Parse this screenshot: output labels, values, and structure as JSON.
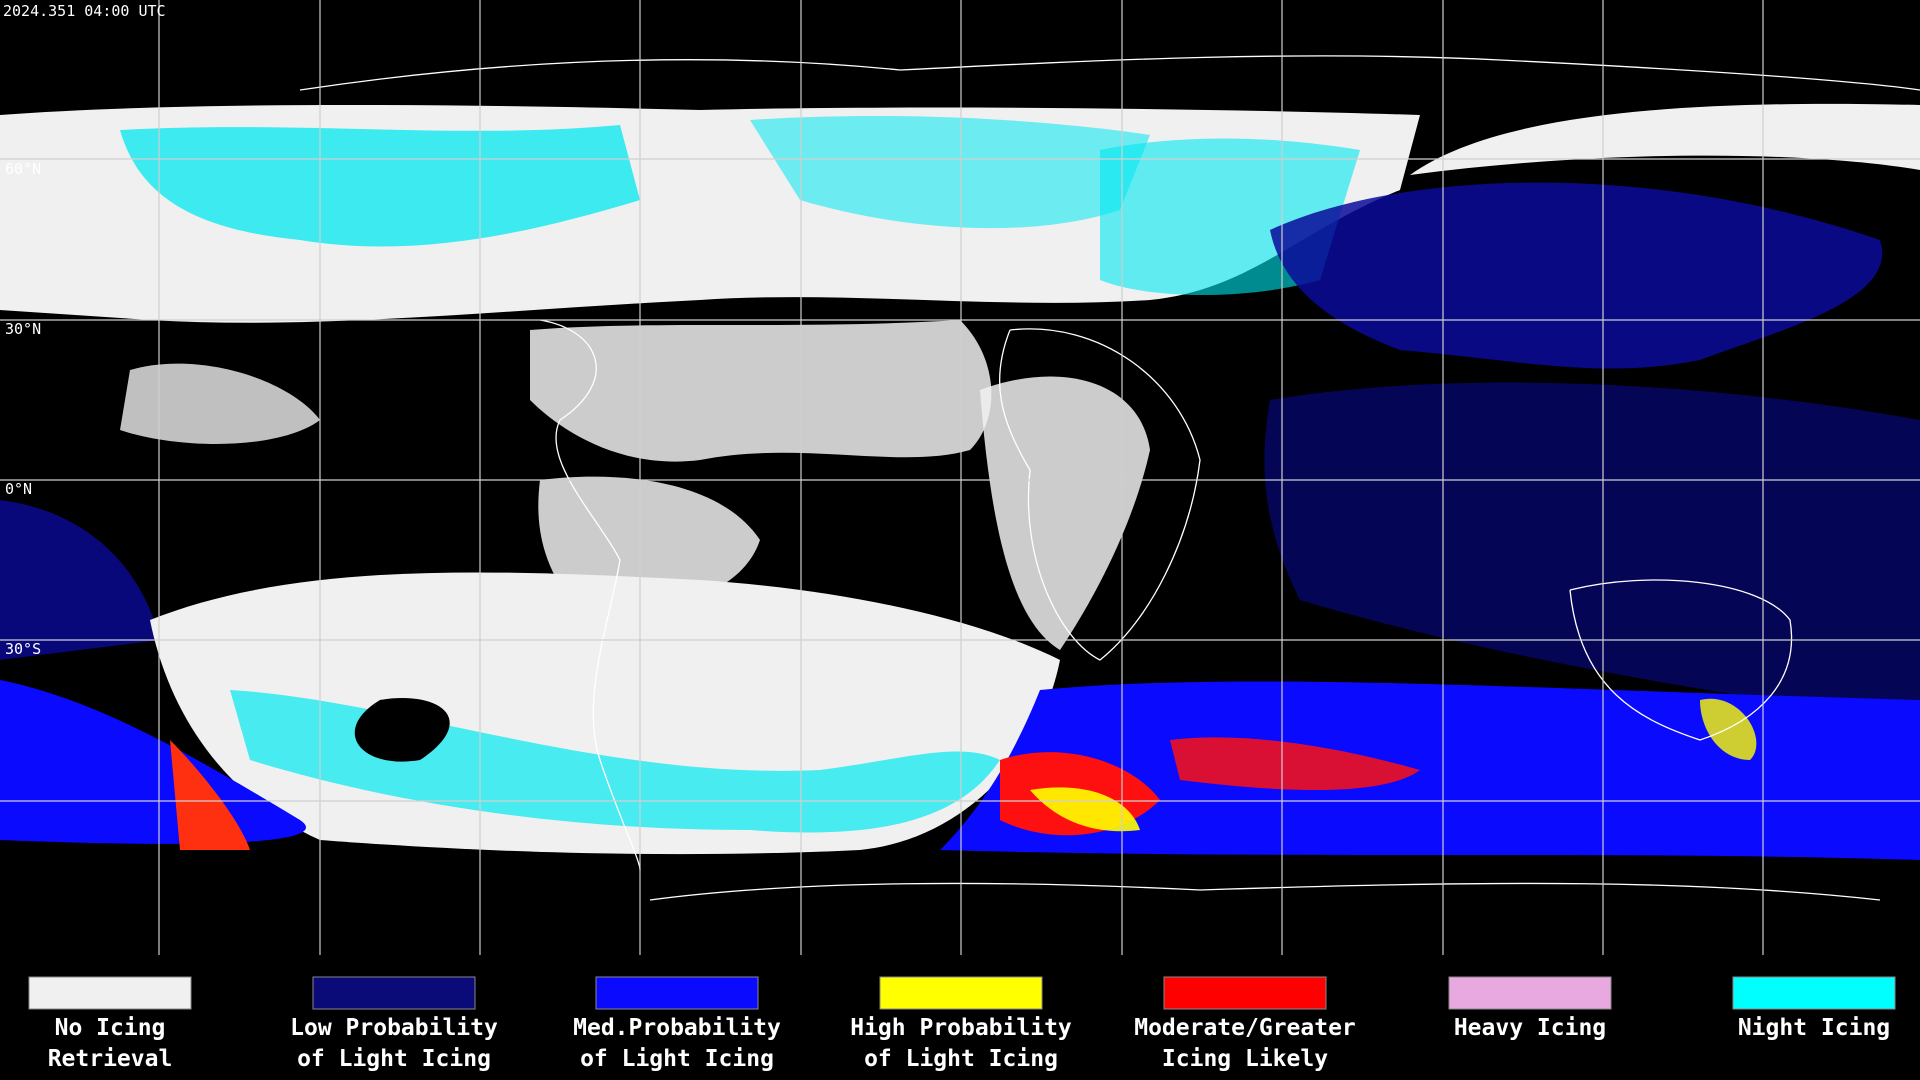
{
  "timestamp": "2024.351 04:00 UTC",
  "latitude_labels": [
    "60°N",
    "30°N",
    "0°N",
    "30°S"
  ],
  "legend": {
    "items": [
      {
        "lines": [
          "No Icing",
          "Retrieval"
        ],
        "color": "#f0f0f0"
      },
      {
        "lines": [
          "Low Probability",
          "of Light Icing"
        ],
        "color": "#0a0a78"
      },
      {
        "lines": [
          "Med.Probability",
          "of Light Icing"
        ],
        "color": "#0a0aff"
      },
      {
        "lines": [
          "High Probability",
          "of Light Icing"
        ],
        "color": "#ffff00"
      },
      {
        "lines": [
          "Moderate/Greater",
          "Icing Likely"
        ],
        "color": "#ff0000"
      },
      {
        "lines": [
          "Heavy Icing"
        ],
        "color": "#e8a8e0"
      },
      {
        "lines": [
          "Night Icing"
        ],
        "color": "#00ffff"
      }
    ]
  }
}
